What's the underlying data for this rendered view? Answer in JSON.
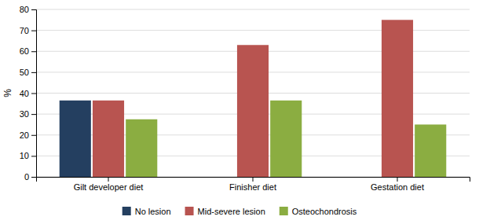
{
  "chart_data": {
    "type": "bar",
    "categories": [
      "Gilt developer diet",
      "Finisher diet",
      "Gestation diet"
    ],
    "series": [
      {
        "name": "No lesion",
        "color": "#243F60",
        "values": [
          36.5,
          0,
          0
        ]
      },
      {
        "name": "Mid-severe lesion",
        "color": "#B85450",
        "values": [
          36.5,
          63.0,
          75.0
        ]
      },
      {
        "name": "Osteochondrosis",
        "color": "#8BAD41",
        "values": [
          27.5,
          36.5,
          25.0
        ]
      }
    ],
    "ylabel": "%",
    "ylim": [
      0,
      80
    ],
    "yticks": [
      0,
      10,
      20,
      30,
      40,
      50,
      60,
      70,
      80
    ],
    "grid": true,
    "legend": "bottom"
  }
}
